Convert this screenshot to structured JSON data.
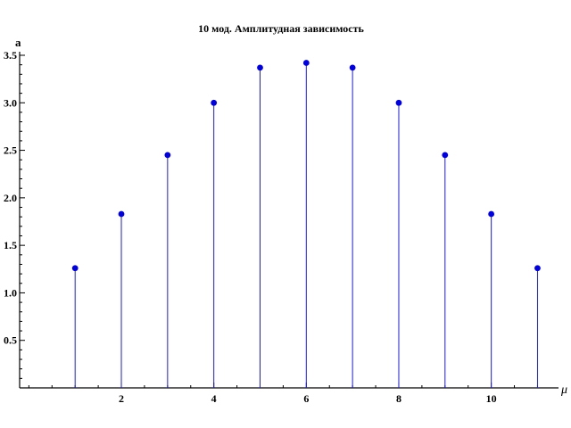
{
  "chart_data": {
    "type": "scatter",
    "title": "10 мод. Амплитудная зависимость",
    "xlabel": "μ",
    "ylabel": "a",
    "x": [
      1,
      2,
      3,
      4,
      5,
      6,
      7,
      8,
      9,
      10,
      11
    ],
    "y": [
      1.26,
      1.83,
      2.45,
      3.0,
      3.37,
      3.42,
      3.37,
      3.0,
      2.45,
      1.83,
      1.26
    ],
    "xlim": [
      -0.2,
      11.3
    ],
    "ylim": [
      0,
      3.5
    ],
    "x_ticks": [
      "2",
      "4",
      "6",
      "8",
      "10"
    ],
    "y_ticks": [
      "0.5",
      "1.0",
      "1.5",
      "2.0",
      "2.5",
      "3.0",
      "3.5"
    ],
    "style": "stem",
    "marker_color": "#0000e0",
    "stem_color": "#1a1aff",
    "grid": false
  }
}
